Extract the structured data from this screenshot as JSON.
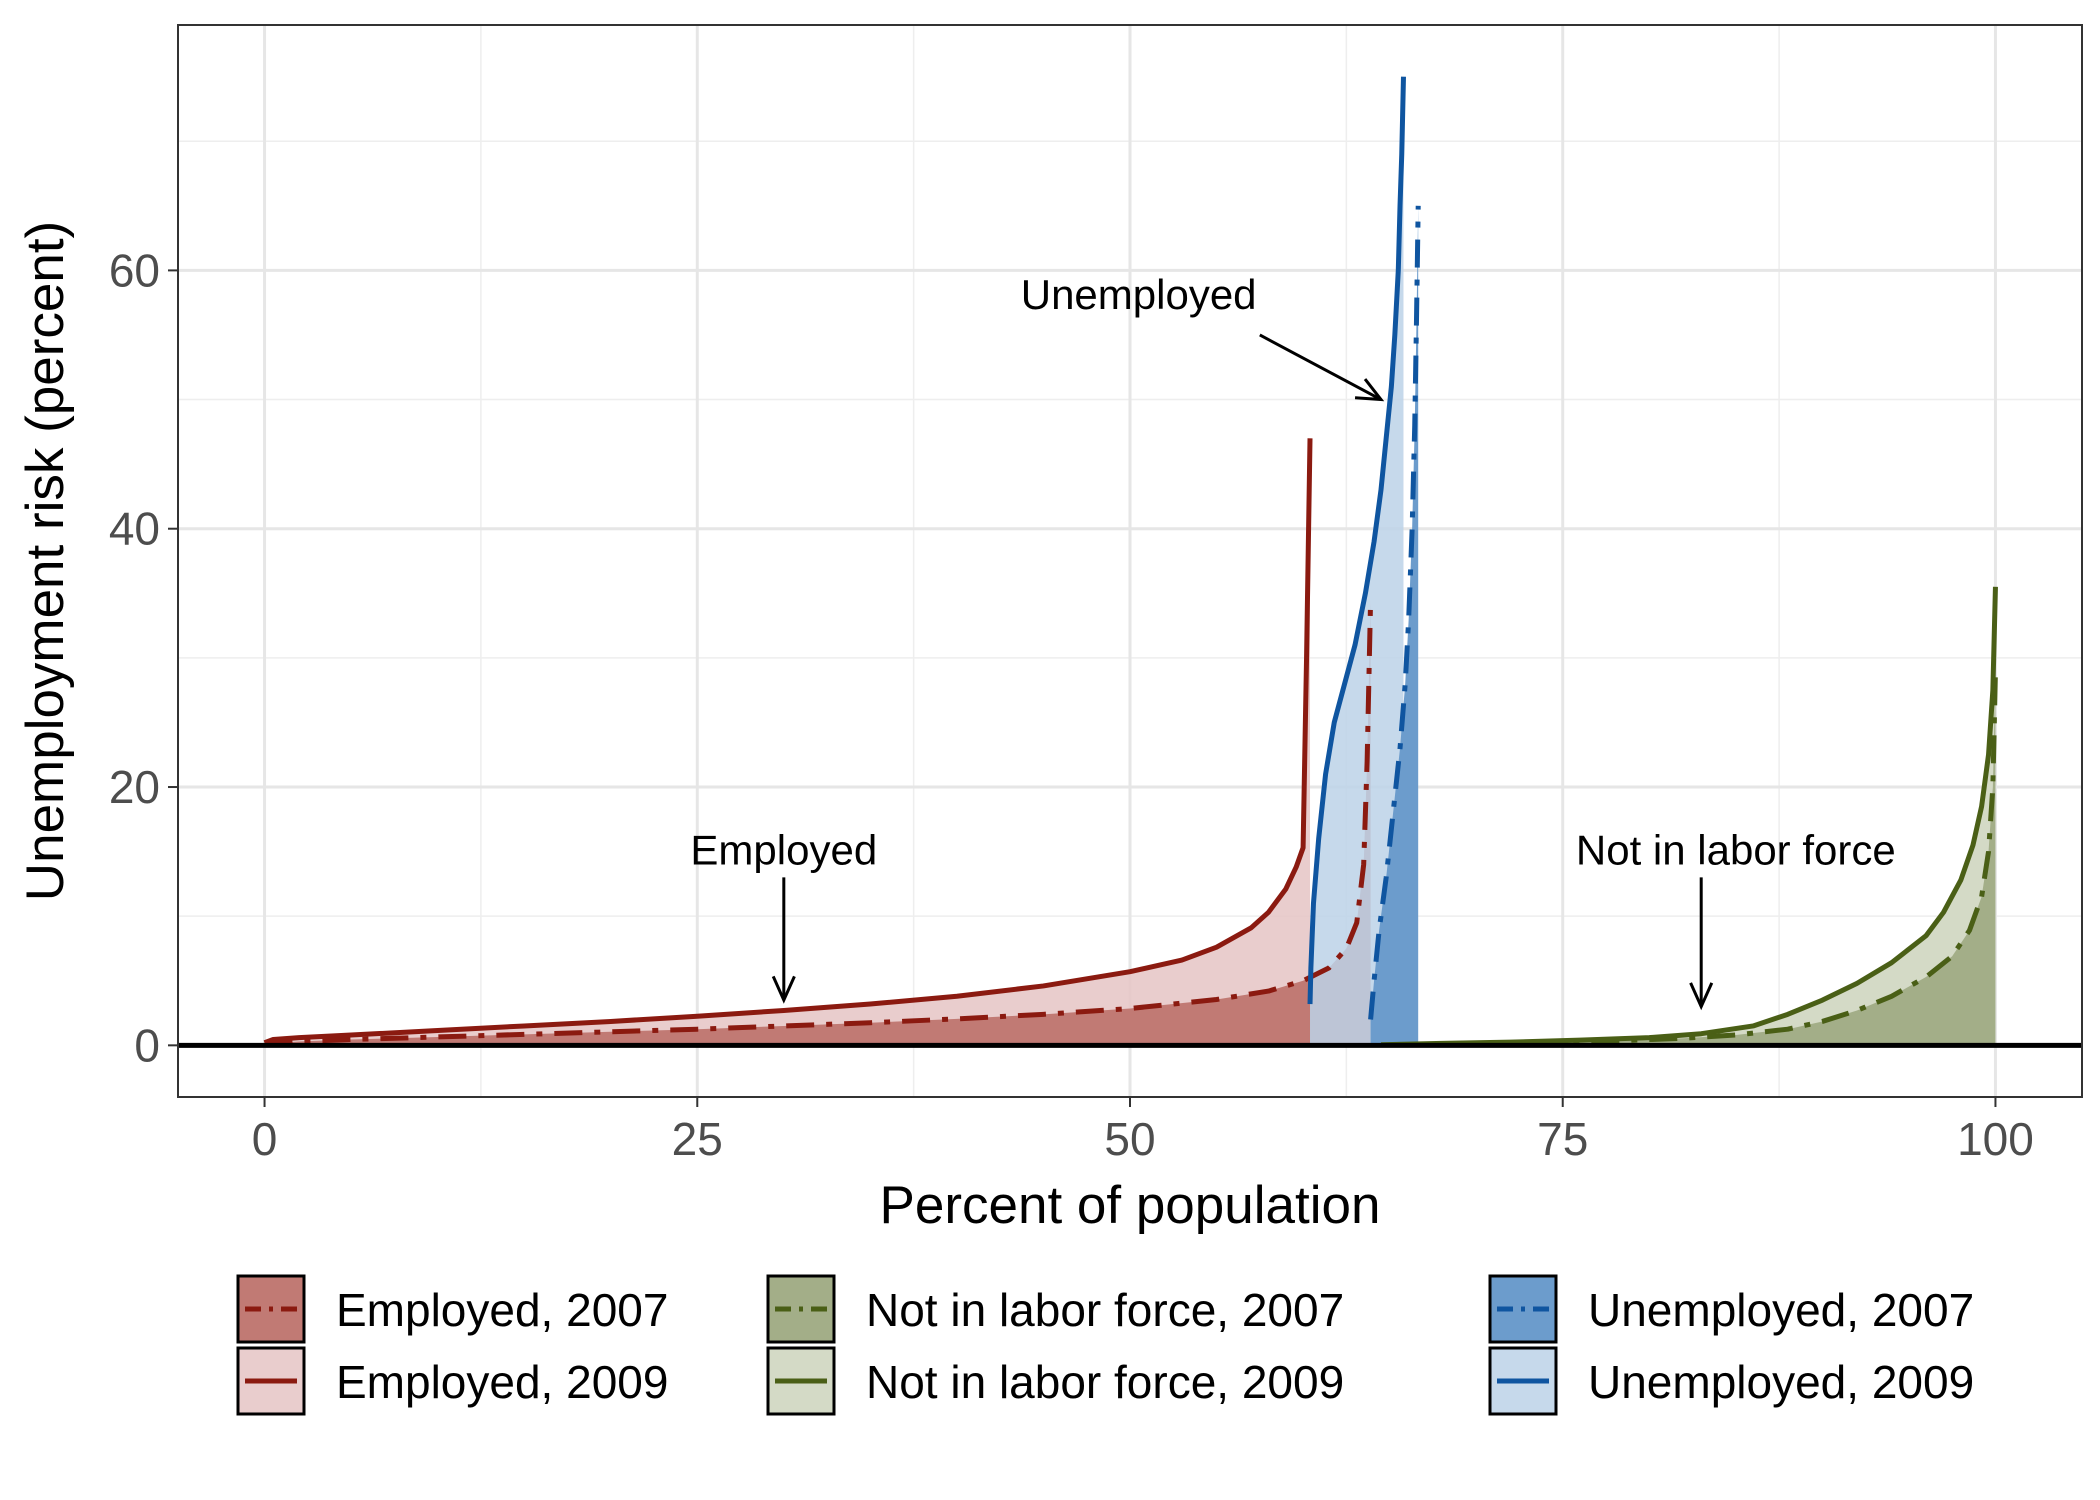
{
  "chart_data": {
    "type": "area",
    "xlabel": "Percent of population",
    "ylabel": "Unemployment risk (percent)",
    "xlim": [
      -5,
      105
    ],
    "ylim": [
      -4,
      79
    ],
    "x_ticks": [
      0,
      25,
      50,
      75,
      100
    ],
    "y_ticks": [
      0,
      20,
      40,
      60
    ],
    "grid": true,
    "legend_position": "bottom",
    "annotations": [
      {
        "text": "Employed",
        "x": 30,
        "y": 14,
        "arrow_to": [
          30,
          3.5
        ],
        "arrow_from": [
          30,
          13
        ]
      },
      {
        "text": "Unemployed",
        "x": 50.5,
        "y": 57,
        "arrow_to": [
          64.5,
          50
        ],
        "arrow_from": [
          57.5,
          55
        ]
      },
      {
        "text": "Not in labor force",
        "x": 85,
        "y": 14,
        "arrow_to": [
          83,
          3
        ],
        "arrow_from": [
          83,
          13
        ]
      }
    ],
    "series": [
      {
        "name": "Employed, 2009",
        "group": "employed",
        "year": 2009,
        "line": "solid",
        "fill": "#e5c4c4",
        "fill_opacity": 0.85,
        "stroke": "#8b1a10",
        "x": [
          0,
          0.5,
          2,
          5,
          10,
          15,
          20,
          25,
          30,
          35,
          40,
          45,
          50,
          53,
          55,
          57,
          58,
          59,
          59.6,
          60.0,
          60.2,
          60.4
        ],
        "y": [
          0.2,
          0.45,
          0.6,
          0.8,
          1.15,
          1.5,
          1.85,
          2.25,
          2.7,
          3.2,
          3.8,
          4.6,
          5.7,
          6.6,
          7.6,
          9.1,
          10.3,
          12.1,
          13.8,
          15.3,
          30,
          47
        ]
      },
      {
        "name": "Employed, 2007",
        "group": "employed",
        "year": 2007,
        "line": "dashdot",
        "fill": "#c17a74",
        "fill_opacity": 1,
        "stroke": "#8b1a10",
        "x": [
          0,
          2,
          5,
          10,
          15,
          20,
          25,
          30,
          35,
          40,
          45,
          50,
          55,
          58,
          60,
          61.5,
          62.5,
          63.1,
          63.5,
          63.7,
          63.9
        ],
        "y": [
          0.1,
          0.3,
          0.45,
          0.65,
          0.85,
          1.05,
          1.25,
          1.5,
          1.75,
          2.05,
          2.4,
          2.85,
          3.55,
          4.2,
          5.0,
          6.0,
          7.5,
          9.5,
          14,
          22,
          34.5
        ]
      },
      {
        "name": "Unemployed, 2009",
        "group": "unemployed",
        "year": 2009,
        "line": "solid",
        "fill": "#bcd2e8",
        "fill_opacity": 0.85,
        "stroke": "#0f55a0",
        "x": [
          60.4,
          60.45,
          60.6,
          60.9,
          61.3,
          61.8,
          62.4,
          63.0,
          63.6,
          64.1,
          64.5,
          64.8,
          65.1,
          65.3,
          65.5,
          65.6,
          65.7,
          65.75,
          65.8
        ],
        "y": [
          3.2,
          6,
          11,
          16,
          21,
          25,
          28,
          31,
          35,
          39,
          43,
          47,
          51,
          55,
          60,
          65,
          69,
          72,
          75
        ]
      },
      {
        "name": "Unemployed, 2007",
        "group": "unemployed",
        "year": 2007,
        "line": "dashdot",
        "fill": "#6c9ccc",
        "fill_opacity": 1,
        "stroke": "#0f55a0",
        "x": [
          63.9,
          64.1,
          64.4,
          64.8,
          65.2,
          65.6,
          65.9,
          66.1,
          66.3,
          66.45,
          66.55,
          66.65
        ],
        "y": [
          2.0,
          5,
          9,
          13,
          18,
          23,
          28,
          33,
          40,
          48,
          56,
          65
        ]
      },
      {
        "name": "Not in labor force, 2009",
        "group": "nilf",
        "year": 2009,
        "line": "solid",
        "fill": "#d4dac6",
        "fill_opacity": 1,
        "stroke": "#4a5f16",
        "x": [
          64.5,
          68,
          72,
          76,
          80,
          83,
          86,
          88,
          90,
          92,
          94,
          96,
          97,
          98,
          98.7,
          99.2,
          99.6,
          99.85,
          100
        ],
        "y": [
          0.05,
          0.15,
          0.25,
          0.4,
          0.6,
          0.9,
          1.5,
          2.4,
          3.5,
          4.8,
          6.4,
          8.5,
          10.3,
          12.8,
          15.5,
          18.5,
          22.5,
          27.5,
          35.5
        ]
      },
      {
        "name": "Not in labor force, 2007",
        "group": "nilf",
        "year": 2007,
        "line": "dashdot",
        "fill": "#a3ae88",
        "fill_opacity": 1,
        "stroke": "#4a5f16",
        "x": [
          66.6,
          70,
          74,
          78,
          82,
          85,
          88,
          90,
          92,
          94,
          96,
          97.5,
          98.5,
          99.2,
          99.6,
          99.85,
          100
        ],
        "y": [
          0.05,
          0.1,
          0.2,
          0.35,
          0.55,
          0.8,
          1.25,
          1.85,
          2.7,
          3.8,
          5.3,
          6.9,
          8.9,
          11.5,
          15,
          20,
          29
        ]
      }
    ]
  }
}
